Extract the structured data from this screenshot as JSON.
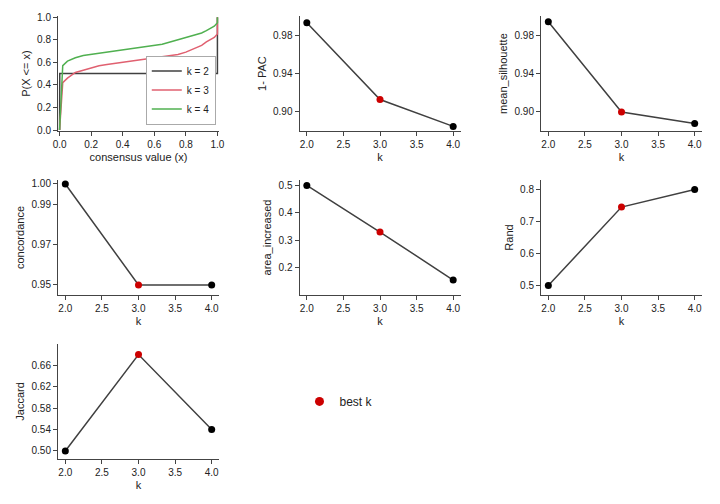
{
  "chart_data": [
    {
      "type": "line",
      "xlabel": "consensus value (x)",
      "ylabel": "P(X <= x)",
      "xlim": [
        -0.01,
        1.01
      ],
      "ylim": [
        -0.01,
        1.01
      ],
      "xticks": [
        {
          "value": 0.0,
          "label": "0.0"
        },
        0.2,
        0.4,
        0.6,
        0.8,
        {
          "value": 1.0,
          "label": "1.0"
        }
      ],
      "yticks": [
        {
          "value": 0.0,
          "label": "0.0"
        },
        0.2,
        0.4,
        0.6,
        0.8,
        {
          "value": 1.0,
          "label": "1.0"
        }
      ],
      "grid": false,
      "legend": "lower right",
      "series": [
        {
          "name": "k = 2",
          "color": "#404040",
          "x": [
            0.0,
            0.0,
            0.001,
            0.5,
            0.999,
            1.0,
            1.0
          ],
          "values": [
            0.0,
            0.0,
            0.5,
            0.5,
            0.5,
            0.5,
            1.0
          ]
        },
        {
          "name": "k = 3",
          "color": "#e06070",
          "x": [
            0.0,
            0.0,
            0.02,
            0.05,
            0.1,
            0.15,
            0.2,
            0.25,
            0.3,
            0.35,
            0.4,
            0.45,
            0.5,
            0.55,
            0.6,
            0.65,
            0.7,
            0.75,
            0.8,
            0.85,
            0.9,
            0.93,
            0.96,
            0.98,
            1.0,
            1.0
          ],
          "values": [
            0.0,
            0.0,
            0.42,
            0.46,
            0.51,
            0.53,
            0.55,
            0.57,
            0.58,
            0.59,
            0.6,
            0.61,
            0.62,
            0.63,
            0.64,
            0.65,
            0.66,
            0.67,
            0.69,
            0.72,
            0.75,
            0.78,
            0.8,
            0.82,
            0.85,
            1.0
          ]
        },
        {
          "name": "k = 4",
          "color": "#50b050",
          "x": [
            0.0,
            0.0,
            0.02,
            0.05,
            0.1,
            0.15,
            0.2,
            0.25,
            0.3,
            0.35,
            0.4,
            0.45,
            0.5,
            0.55,
            0.6,
            0.65,
            0.7,
            0.75,
            0.8,
            0.85,
            0.9,
            0.93,
            0.96,
            0.98,
            1.0,
            1.0
          ],
          "values": [
            0.0,
            0.0,
            0.57,
            0.61,
            0.64,
            0.66,
            0.67,
            0.68,
            0.69,
            0.7,
            0.71,
            0.72,
            0.73,
            0.74,
            0.75,
            0.76,
            0.78,
            0.8,
            0.82,
            0.84,
            0.86,
            0.88,
            0.9,
            0.92,
            0.95,
            1.0
          ]
        }
      ]
    },
    {
      "type": "line",
      "xlabel": "k",
      "ylabel": "1- PAC",
      "x": [
        2,
        3,
        4
      ],
      "xlim": [
        1.9,
        4.1
      ],
      "xticks": [
        {
          "value": 2,
          "label": "2.0"
        },
        2.5,
        {
          "value": 3,
          "label": "3.0"
        },
        3.5,
        {
          "value": 4,
          "label": "4.0"
        }
      ],
      "ylim": [
        0.88,
        1.0
      ],
      "yticks": [
        {
          "value": 0.9,
          "label": "0.90"
        },
        0.94,
        0.98
      ],
      "grid": false,
      "series": [
        {
          "color": "#404040",
          "marker": "circle",
          "colors": [
            "#000000",
            "#cc0000",
            "#000000"
          ],
          "values": [
            0.993,
            0.913,
            0.885
          ]
        }
      ]
    },
    {
      "type": "line",
      "xlabel": "k",
      "ylabel": "mean_silhouette",
      "x": [
        2,
        3,
        4
      ],
      "xlim": [
        1.9,
        4.1
      ],
      "xticks": [
        {
          "value": 2,
          "label": "2.0"
        },
        2.5,
        {
          "value": 3,
          "label": "3.0"
        },
        3.5,
        {
          "value": 4,
          "label": "4.0"
        }
      ],
      "ylim": [
        0.88,
        1.0
      ],
      "yticks": [
        {
          "value": 0.9,
          "label": "0.90"
        },
        0.94,
        0.98
      ],
      "grid": false,
      "series": [
        {
          "color": "#404040",
          "marker": "circle",
          "colors": [
            "#000000",
            "#cc0000",
            "#000000"
          ],
          "values": [
            0.994,
            0.9,
            0.888
          ]
        }
      ]
    },
    {
      "type": "line",
      "xlabel": "k",
      "ylabel": "concordance",
      "x": [
        2,
        3,
        4
      ],
      "xlim": [
        1.9,
        4.1
      ],
      "xticks": [
        {
          "value": 2,
          "label": "2.0"
        },
        2.5,
        {
          "value": 3,
          "label": "3.0"
        },
        3.5,
        {
          "value": 4,
          "label": "4.0"
        }
      ],
      "ylim": [
        0.945,
        1.002
      ],
      "yticks": [
        0.95,
        0.97,
        0.99,
        {
          "value": 1.0,
          "label": "1.00"
        }
      ],
      "grid": false,
      "series": [
        {
          "color": "#404040",
          "marker": "circle",
          "colors": [
            "#000000",
            "#cc0000",
            "#000000"
          ],
          "values": [
            1.0,
            0.95,
            0.95
          ]
        }
      ]
    },
    {
      "type": "line",
      "xlabel": "k",
      "ylabel": "area_increased",
      "x": [
        2,
        3,
        4
      ],
      "xlim": [
        1.9,
        4.1
      ],
      "xticks": [
        {
          "value": 2,
          "label": "2.0"
        },
        2.5,
        {
          "value": 3,
          "label": "3.0"
        },
        3.5,
        {
          "value": 4,
          "label": "4.0"
        }
      ],
      "ylim": [
        0.1,
        0.52
      ],
      "yticks": [
        0.2,
        0.3,
        0.4,
        0.5
      ],
      "grid": false,
      "series": [
        {
          "color": "#404040",
          "marker": "circle",
          "colors": [
            "#000000",
            "#cc0000",
            "#000000"
          ],
          "values": [
            0.5,
            0.33,
            0.155
          ]
        }
      ]
    },
    {
      "type": "line",
      "xlabel": "k",
      "ylabel": "Rand",
      "x": [
        2,
        3,
        4
      ],
      "xlim": [
        1.9,
        4.1
      ],
      "xticks": [
        {
          "value": 2,
          "label": "2.0"
        },
        2.5,
        {
          "value": 3,
          "label": "3.0"
        },
        3.5,
        {
          "value": 4,
          "label": "4.0"
        }
      ],
      "ylim": [
        0.47,
        0.83
      ],
      "yticks": [
        0.5,
        0.6,
        0.7,
        0.8
      ],
      "grid": false,
      "series": [
        {
          "color": "#404040",
          "marker": "circle",
          "colors": [
            "#000000",
            "#cc0000",
            "#000000"
          ],
          "values": [
            0.5,
            0.745,
            0.8
          ]
        }
      ]
    },
    {
      "type": "line",
      "xlabel": "k",
      "ylabel": "Jaccard",
      "x": [
        2,
        3,
        4
      ],
      "xlim": [
        1.9,
        4.1
      ],
      "xticks": [
        {
          "value": 2,
          "label": "2.0"
        },
        2.5,
        {
          "value": 3,
          "label": "3.0"
        },
        3.5,
        {
          "value": 4,
          "label": "4.0"
        }
      ],
      "ylim": [
        0.485,
        0.7
      ],
      "yticks": [
        {
          "value": 0.5,
          "label": "0.50"
        },
        0.54,
        0.58,
        0.62,
        0.66
      ],
      "grid": false,
      "series": [
        {
          "color": "#404040",
          "marker": "circle",
          "colors": [
            "#000000",
            "#cc0000",
            "#000000"
          ],
          "values": [
            0.5,
            0.68,
            0.54
          ]
        }
      ]
    },
    {
      "type": "legend",
      "legend": "left",
      "series": [
        {
          "name": "best k",
          "color": "#cc0000",
          "marker": "circle"
        }
      ]
    }
  ]
}
